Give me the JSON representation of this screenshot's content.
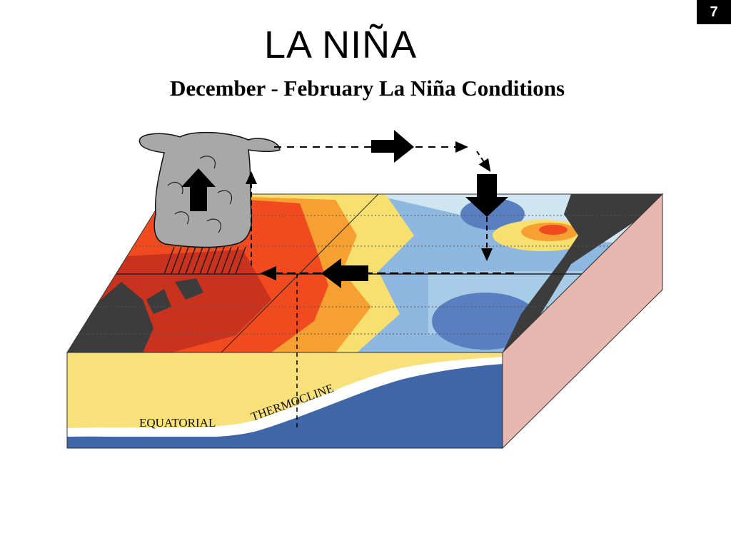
{
  "slide": {
    "number": "7",
    "title": "LA NIÑA"
  },
  "figure": {
    "title": "December - February La Niña Conditions",
    "labels": {
      "equatorial": "EQUATORIAL",
      "thermocline": "THERMOCLINE"
    }
  },
  "colors": {
    "warm_deep": "#c8321e",
    "warm": "#f04a1e",
    "warm_light": "#f6a032",
    "yellow": "#f8e070",
    "cool_light": "#cfe6f2",
    "cool": "#8fb8e0",
    "cold": "#5a7fc0",
    "land": "#3c3c3c",
    "warm_layer": "#f8e07a",
    "cold_layer": "#3f66a6",
    "side_face": "#e8b8b0",
    "cloud": "#a8a8a8"
  },
  "icons": {
    "cloud": "convection-cloud-icon",
    "arrows": "circulation-arrow-icon"
  }
}
